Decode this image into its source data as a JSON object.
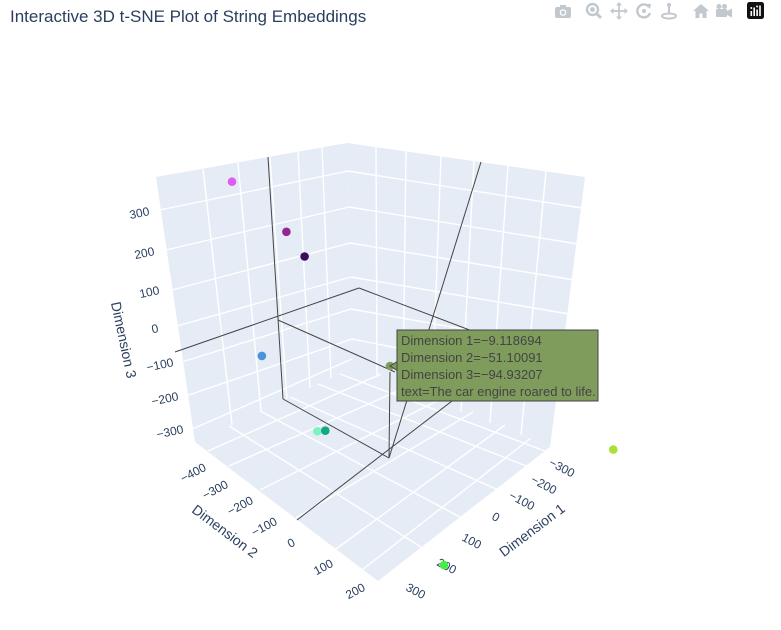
{
  "title": "Interactive 3D t-SNE Plot of String Embeddings",
  "modebar": {
    "buttons": [
      {
        "name": "camera-icon"
      },
      {
        "name": "zoom-icon"
      },
      {
        "name": "pan-icon"
      },
      {
        "name": "orbit-rotation-icon"
      },
      {
        "name": "turntable-rotation-icon"
      },
      {
        "name": "reset-camera-icon"
      },
      {
        "name": "last-save-camera-icon"
      },
      {
        "name": "plotly-logo-icon"
      }
    ]
  },
  "chart_data": {
    "type": "scatter3d",
    "title": "Interactive 3D t-SNE Plot of String Embeddings",
    "xlabel": "Dimension 1",
    "ylabel": "Dimension 2",
    "zlabel": "Dimension 3",
    "x_ticks": [
      "−300",
      "−200",
      "−100",
      "0",
      "100",
      "200",
      "300"
    ],
    "y_ticks": [
      "−400",
      "−300",
      "−200",
      "−100",
      "0",
      "100",
      "200"
    ],
    "z_ticks": [
      "300",
      "200",
      "100",
      "0",
      "−100",
      "−200",
      "−300"
    ],
    "points": [
      {
        "x": 120,
        "y": -320,
        "z": 330,
        "color": "#dd5ef0"
      },
      {
        "x": 350,
        "y": 20,
        "z": 260,
        "color": "#4a93dc"
      },
      {
        "x": 30,
        "y": -280,
        "z": 150,
        "color": "#93268f"
      },
      {
        "x": 40,
        "y": -220,
        "z": 130,
        "color": "#3e0b62"
      },
      {
        "x": 310,
        "y": 120,
        "z": 90,
        "color": "#7ef3bf"
      },
      {
        "x": 300,
        "y": 130,
        "z": 90,
        "color": "#12a882"
      },
      {
        "x": -9.118694,
        "y": -51.10091,
        "z": -94.93207,
        "color": "#7f9c5d",
        "text": "The car engine roared to life."
      },
      {
        "x": -250,
        "y": 40,
        "z": -260,
        "color": "#f9f56c"
      },
      {
        "x": 150,
        "y": 270,
        "z": -300,
        "color": "#44ee44"
      },
      {
        "x": -270,
        "y": 250,
        "z": -330,
        "color": "#a9e138"
      }
    ]
  },
  "hover": {
    "line1": "Dimension 1=−9.118694",
    "line2": "Dimension 2=−51.10091",
    "line3": "Dimension 3=−94.93207",
    "line4": "text=The car engine roared to life.",
    "bg": "#7f9c5d"
  }
}
